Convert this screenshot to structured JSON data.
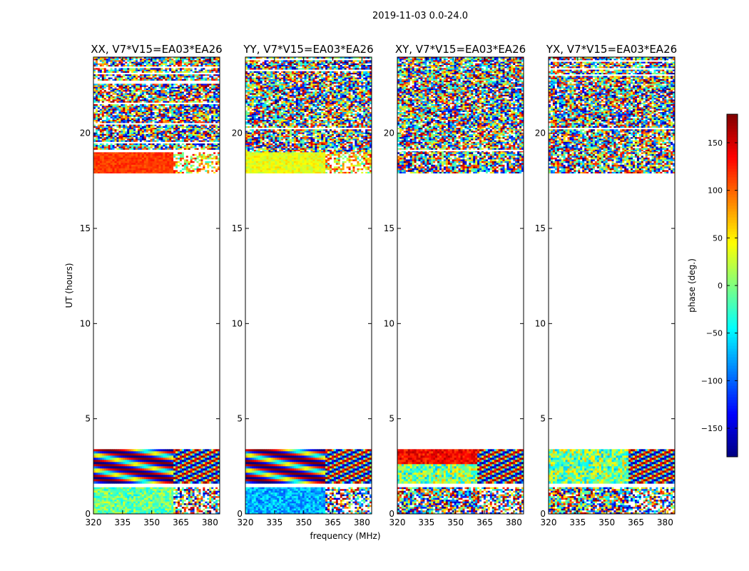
{
  "chart_data": {
    "type": "heatmap",
    "suptitle": "2019-11-03 0.0-24.0",
    "xlabel": "frequency (MHz)",
    "ylabel": "UT (hours)",
    "xlim": [
      320,
      385
    ],
    "ylim": [
      0,
      24
    ],
    "x_ticks": [
      320,
      335,
      350,
      365,
      380
    ],
    "y_ticks": [
      0,
      5,
      10,
      15,
      20
    ],
    "panels": [
      {
        "title": "XX, V7*V15=EA03*EA26",
        "pol": "XX"
      },
      {
        "title": "YY, V7*V15=EA03*EA26",
        "pol": "YY"
      },
      {
        "title": "XY, V7*V15=EA03*EA26",
        "pol": "XY"
      },
      {
        "title": "YX, V7*V15=EA03*EA26",
        "pol": "YX"
      }
    ],
    "data_segments": [
      {
        "ut_start": 0.0,
        "ut_end": 1.6,
        "description": "observed"
      },
      {
        "ut_start": 1.6,
        "ut_end": 3.4,
        "description": "observed"
      },
      {
        "ut_start": 3.4,
        "ut_end": 17.9,
        "description": "no data"
      },
      {
        "ut_start": 17.9,
        "ut_end": 24.0,
        "description": "observed"
      }
    ],
    "colorbar": {
      "label": "phase (deg.)",
      "range": [
        -180,
        180
      ],
      "ticks": [
        -150,
        -100,
        -50,
        0,
        50,
        100,
        150
      ],
      "tick_labels": [
        "−150",
        "−100",
        "−50",
        "0",
        "50",
        "100",
        "150"
      ],
      "colormap": "jet"
    }
  }
}
